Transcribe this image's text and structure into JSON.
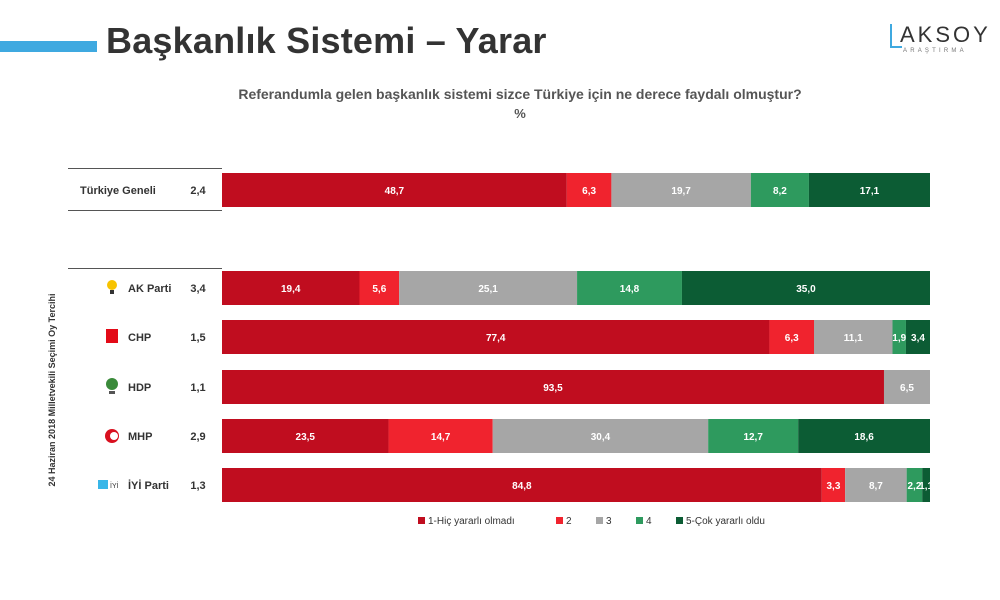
{
  "header": {
    "title": "Başkanlık Sistemi – Yarar",
    "logo_word": "AKSOY",
    "logo_sub": "ARAŞTIRMA"
  },
  "question": "Referandumla gelen başkanlık sistemi sizce Türkiye için ne derece faydalı olmuştur?",
  "unit": "%",
  "group_label": "24 Haziran 2018 Milletvekili Seçimi Oy Tercihi",
  "colors": {
    "c1": "#c00d1f",
    "c2": "#f0232e",
    "c3": "#a6a6a6",
    "c4": "#2e9a5e",
    "c5": "#0c5c34"
  },
  "chart_data": {
    "type": "bar",
    "orientation": "horizontal",
    "stacked": true,
    "categories": [
      "Türkiye Geneli",
      "AK Parti",
      "CHP",
      "HDP",
      "MHP",
      "İYİ Parti"
    ],
    "means": [
      "2,4",
      "3,4",
      "1,5",
      "1,1",
      "2,9",
      "1,3"
    ],
    "series": [
      {
        "name": "1-Hiç yararlı olmadı",
        "values": [
          48.7,
          19.4,
          77.4,
          93.5,
          23.5,
          84.8
        ],
        "labels": [
          "48,7",
          "19,4",
          "77,4",
          "93,5",
          "23,5",
          "84,8"
        ]
      },
      {
        "name": "2",
        "values": [
          6.3,
          5.6,
          6.3,
          0,
          14.7,
          3.3
        ],
        "labels": [
          "6,3",
          "5,6",
          "6,3",
          "",
          "14,7",
          "3,3"
        ]
      },
      {
        "name": "3",
        "values": [
          19.7,
          25.1,
          11.1,
          6.5,
          30.4,
          8.7
        ],
        "labels": [
          "19,7",
          "25,1",
          "11,1",
          "6,5",
          "30,4",
          "8,7"
        ]
      },
      {
        "name": "4",
        "values": [
          8.2,
          14.8,
          1.9,
          0,
          12.7,
          2.2
        ],
        "labels": [
          "8,2",
          "14,8",
          "1,9",
          "",
          "12,7",
          "2,2"
        ]
      },
      {
        "name": "5-Çok yararlı oldu",
        "values": [
          17.1,
          35.0,
          3.4,
          0,
          18.6,
          1.1
        ],
        "labels": [
          "17,1",
          "35,0",
          "3,4",
          "",
          "18,6",
          "1,1"
        ]
      }
    ],
    "xlim": [
      0,
      100
    ],
    "legend": "bottom",
    "grid": false
  }
}
